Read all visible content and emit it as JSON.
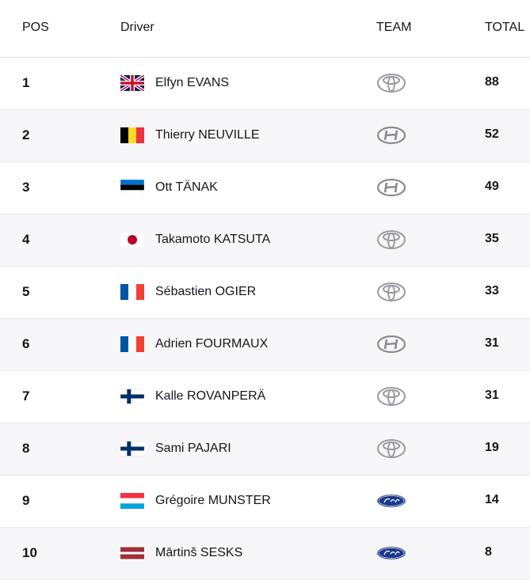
{
  "headers": {
    "pos": "POS",
    "driver": "Driver",
    "team": "TEAM",
    "total": "TOTAL"
  },
  "rows": [
    {
      "pos": "1",
      "flag": "gb-flag-icon",
      "driver": "Elfyn EVANS",
      "team": "toyota-logo-icon",
      "total": "88"
    },
    {
      "pos": "2",
      "flag": "be-flag-icon",
      "driver": "Thierry NEUVILLE",
      "team": "hyundai-logo-icon",
      "total": "52"
    },
    {
      "pos": "3",
      "flag": "ee-flag-icon",
      "driver": "Ott TÄNAK",
      "team": "hyundai-logo-icon",
      "total": "49"
    },
    {
      "pos": "4",
      "flag": "jp-flag-icon",
      "driver": "Takamoto KATSUTA",
      "team": "toyota-logo-icon",
      "total": "35"
    },
    {
      "pos": "5",
      "flag": "fr-flag-icon",
      "driver": "Sébastien OGIER",
      "team": "toyota-logo-icon",
      "total": "33"
    },
    {
      "pos": "6",
      "flag": "fr-flag-icon",
      "driver": "Adrien FOURMAUX",
      "team": "hyundai-logo-icon",
      "total": "31"
    },
    {
      "pos": "7",
      "flag": "fi-flag-icon",
      "driver": "Kalle ROVANPERÄ",
      "team": "toyota-logo-icon",
      "total": "31"
    },
    {
      "pos": "8",
      "flag": "fi-flag-icon",
      "driver": "Sami PAJARI",
      "team": "toyota-logo-icon",
      "total": "19"
    },
    {
      "pos": "9",
      "flag": "lu-flag-icon",
      "driver": "Grégoire MUNSTER",
      "team": "ford-logo-icon",
      "total": "14"
    },
    {
      "pos": "10",
      "flag": "lv-flag-icon",
      "driver": "Mārtinš SESKS",
      "team": "ford-logo-icon",
      "total": "8"
    }
  ],
  "colors": {
    "text": "#15151e",
    "row_alt": "#f7f7f9",
    "divider": "#e9e9ee",
    "ford_blue": "#1b3a8c",
    "logo_grey": "#9a9aa2"
  }
}
